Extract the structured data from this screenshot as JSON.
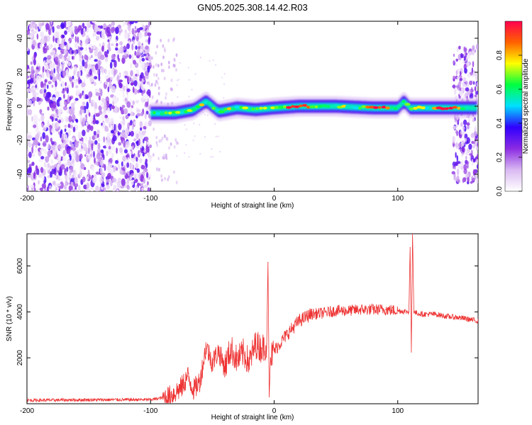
{
  "title": "GN05.2025.308.14.42.R03",
  "chart_data": [
    {
      "type": "heatmap",
      "xlabel": "Height of straight line (km)",
      "ylabel": "Frequency (Hz)",
      "xlim": [
        -200,
        165
      ],
      "ylim": [
        -50,
        50
      ],
      "xticks": [
        -200,
        -100,
        0,
        100
      ],
      "yticks": [
        -40,
        -20,
        0,
        20,
        40
      ],
      "colorbar": {
        "label": "Normalized spectral amplitude",
        "range": [
          0,
          1
        ],
        "ticks": [
          0.0,
          0.2,
          0.4,
          0.6,
          0.8
        ],
        "tick_labels": [
          "0.0",
          "0.2",
          "0.4",
          "0.6",
          "0.8"
        ],
        "colors": [
          "#ffffff",
          "#d9b8f2",
          "#8a2be2",
          "#3000ff",
          "#00e0ff",
          "#00ff40",
          "#ffff00",
          "#ff6000",
          "#ff0050"
        ]
      },
      "noise_region": {
        "x": [
          -200,
          -100
        ],
        "freq": [
          -50,
          50
        ]
      },
      "signal_ridge": [
        {
          "x": -100,
          "freq": -4
        },
        {
          "x": -80,
          "freq": -4
        },
        {
          "x": -65,
          "freq": -2
        },
        {
          "x": -55,
          "freq": 3
        },
        {
          "x": -45,
          "freq": -3
        },
        {
          "x": -30,
          "freq": -1
        },
        {
          "x": -15,
          "freq": -2
        },
        {
          "x": 0,
          "freq": -1
        },
        {
          "x": 20,
          "freq": 0
        },
        {
          "x": 50,
          "freq": 0
        },
        {
          "x": 80,
          "freq": -1
        },
        {
          "x": 100,
          "freq": -1
        },
        {
          "x": 105,
          "freq": 3
        },
        {
          "x": 110,
          "freq": -1
        },
        {
          "x": 140,
          "freq": -1
        },
        {
          "x": 165,
          "freq": -1
        }
      ],
      "right_noise_region": {
        "x": [
          145,
          165
        ],
        "freq": [
          -45,
          35
        ]
      }
    },
    {
      "type": "line",
      "xlabel": "Height of straight line (km)",
      "ylabel": "SNR (10 * v/v)",
      "xlim": [
        -200,
        165
      ],
      "ylim": [
        0,
        7400
      ],
      "xticks": [
        -200,
        -100,
        0,
        100
      ],
      "yticks": [
        2000,
        4000,
        6000
      ],
      "color": "#ee3333",
      "series": [
        {
          "x": [
            -200,
            -150,
            -100,
            -85,
            -75,
            -70,
            -65,
            -60,
            -55,
            -50,
            -45,
            -40,
            -35,
            -30,
            -25,
            -20,
            -15,
            -10,
            -6,
            -5,
            -4,
            -3,
            0,
            10,
            20,
            30,
            40,
            50,
            60,
            70,
            80,
            90,
            100,
            109,
            110,
            111,
            112,
            113,
            115,
            120,
            130,
            140,
            150,
            165
          ],
          "y": [
            150,
            170,
            180,
            300,
            700,
            1200,
            600,
            1000,
            2500,
            1800,
            2300,
            1600,
            2400,
            1900,
            2200,
            1800,
            2600,
            2400,
            2600,
            6150,
            300,
            2000,
            2300,
            3000,
            3600,
            3900,
            3950,
            4050,
            4050,
            4100,
            4100,
            4100,
            4050,
            4000,
            6800,
            2250,
            7400,
            4000,
            3950,
            3900,
            3900,
            3800,
            3750,
            3600
          ]
        }
      ]
    }
  ]
}
